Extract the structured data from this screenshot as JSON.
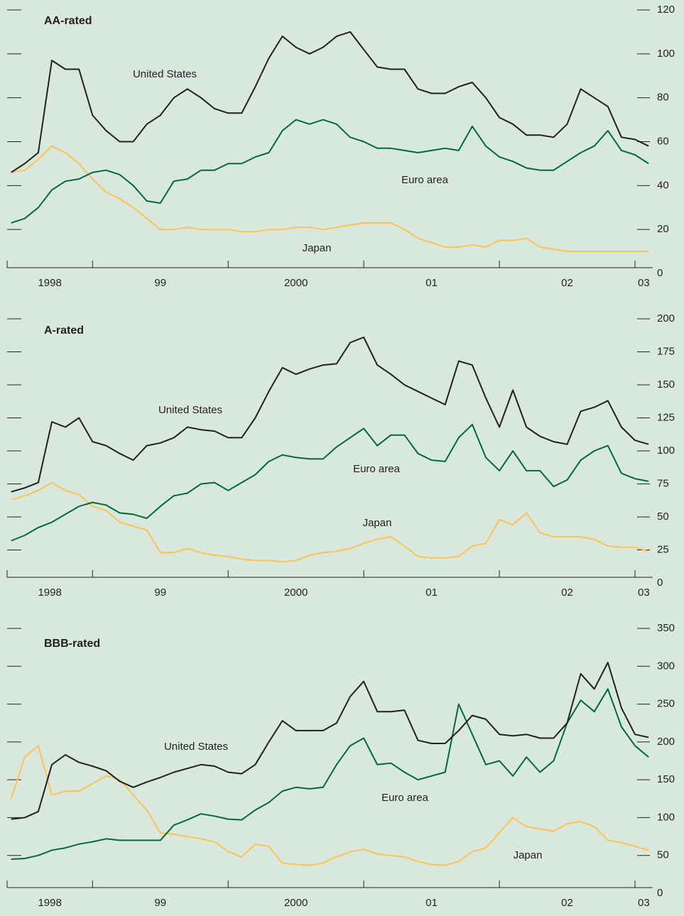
{
  "chart_data": [
    {
      "type": "line",
      "title": "AA-rated",
      "x": [
        1998.4,
        1998.5,
        1998.6,
        1998.7,
        1998.8,
        1998.9,
        1999,
        1999.1,
        1999.2,
        1999.3,
        1999.4,
        1999.5,
        1999.6,
        1999.7,
        1999.8,
        1999.9,
        2000,
        2000.1,
        2000.2,
        2000.3,
        2000.4,
        2000.5,
        2000.6,
        2000.7,
        2000.8,
        2000.9,
        2001,
        2001.1,
        2001.2,
        2001.3,
        2001.4,
        2001.5,
        2001.6,
        2001.7,
        2001.8,
        2001.9,
        2002,
        2002.1,
        2002.2,
        2002.3,
        2002.4,
        2002.5,
        2002.6,
        2002.7,
        2002.8,
        2002.9,
        2003,
        2003.1
      ],
      "series": [
        {
          "name": "United States",
          "color": "#231f20",
          "values": [
            46,
            50,
            55,
            97,
            93,
            93,
            72,
            65,
            60,
            60,
            68,
            72,
            80,
            84,
            80,
            75,
            73,
            73,
            85,
            98,
            108,
            103,
            100,
            103,
            108,
            110,
            102,
            94,
            93,
            93,
            84,
            82,
            82,
            85,
            87,
            80,
            71,
            68,
            63,
            63,
            62,
            68,
            84,
            80,
            76,
            62,
            61,
            58
          ]
        },
        {
          "name": "Euro area",
          "color": "#006a3c",
          "values": [
            23,
            25,
            30,
            38,
            42,
            43,
            46,
            47,
            45,
            40,
            33,
            32,
            42,
            43,
            47,
            47,
            50,
            50,
            53,
            55,
            65,
            70,
            68,
            70,
            68,
            62,
            60,
            57,
            57,
            56,
            55,
            56,
            57,
            56,
            67,
            58,
            53,
            51,
            48,
            47,
            47,
            51,
            55,
            58,
            65,
            56,
            54,
            50
          ]
        },
        {
          "name": "Japan",
          "color": "#fdc34e",
          "values": [
            46,
            47,
            52,
            58,
            55,
            50,
            43,
            37,
            34,
            30,
            25,
            20,
            20,
            21,
            20,
            20,
            20,
            19,
            19,
            20,
            20,
            21,
            21,
            20,
            21,
            22,
            23,
            23,
            23,
            20,
            16,
            14,
            12,
            12,
            13,
            12,
            15,
            15,
            16,
            12,
            11,
            10,
            10,
            10,
            10,
            10,
            10,
            10
          ]
        }
      ],
      "xlim": [
        1998.37,
        2003.13
      ],
      "xticks": [
        {
          "value": 1998.5,
          "label": "1998"
        },
        {
          "value": 1999.5,
          "label": "99"
        },
        {
          "value": 2000.5,
          "label": "2000"
        },
        {
          "value": 2001.5,
          "label": "01"
        },
        {
          "value": 2002.5,
          "label": "02"
        },
        {
          "value": 2003.5,
          "label": "03"
        }
      ],
      "ylim": [
        0,
        120
      ],
      "yticks": [
        0,
        20,
        40,
        60,
        80,
        100,
        120
      ]
    },
    {
      "type": "line",
      "title": "A-rated",
      "x": [
        1998.4,
        1998.5,
        1998.6,
        1998.7,
        1998.8,
        1998.9,
        1999,
        1999.1,
        1999.2,
        1999.3,
        1999.4,
        1999.5,
        1999.6,
        1999.7,
        1999.8,
        1999.9,
        2000,
        2000.1,
        2000.2,
        2000.3,
        2000.4,
        2000.5,
        2000.6,
        2000.7,
        2000.8,
        2000.9,
        2001,
        2001.1,
        2001.2,
        2001.3,
        2001.4,
        2001.5,
        2001.6,
        2001.7,
        2001.8,
        2001.9,
        2002,
        2002.1,
        2002.2,
        2002.3,
        2002.4,
        2002.5,
        2002.6,
        2002.7,
        2002.8,
        2002.9,
        2003,
        2003.1
      ],
      "series": [
        {
          "name": "United States",
          "color": "#231f20",
          "values": [
            69,
            72,
            76,
            122,
            118,
            125,
            107,
            104,
            98,
            93,
            104,
            106,
            110,
            118,
            116,
            115,
            110,
            110,
            125,
            145,
            163,
            158,
            162,
            165,
            166,
            182,
            186,
            165,
            158,
            150,
            145,
            140,
            135,
            168,
            165,
            140,
            118,
            146,
            118,
            111,
            107,
            105,
            130,
            133,
            138,
            118,
            108,
            105
          ]
        },
        {
          "name": "Euro area",
          "color": "#006a3c",
          "values": [
            32,
            36,
            42,
            46,
            52,
            58,
            61,
            59,
            53,
            52,
            49,
            58,
            66,
            68,
            75,
            76,
            70,
            76,
            82,
            92,
            97,
            95,
            94,
            94,
            103,
            110,
            117,
            104,
            112,
            112,
            98,
            93,
            92,
            110,
            120,
            95,
            85,
            100,
            85,
            85,
            73,
            78,
            93,
            100,
            104,
            83,
            79,
            77
          ]
        },
        {
          "name": "Japan",
          "color": "#fdc34e",
          "values": [
            63,
            66,
            70,
            76,
            70,
            67,
            58,
            55,
            46,
            43,
            40,
            23,
            23,
            26,
            23,
            21,
            20,
            18,
            17,
            17,
            16,
            17,
            21,
            23,
            24,
            26,
            30,
            33,
            35,
            28,
            20,
            19,
            19,
            20,
            28,
            30,
            48,
            44,
            53,
            38,
            35,
            35,
            35,
            33,
            28,
            27,
            27,
            24
          ]
        }
      ],
      "xlim": [
        1998.37,
        2003.13
      ],
      "xticks": [
        {
          "value": 1998.5,
          "label": "1998"
        },
        {
          "value": 1999.5,
          "label": "99"
        },
        {
          "value": 2000.5,
          "label": "2000"
        },
        {
          "value": 2001.5,
          "label": "01"
        },
        {
          "value": 2002.5,
          "label": "02"
        },
        {
          "value": 2003.5,
          "label": "03"
        }
      ],
      "ylim": [
        0,
        200
      ],
      "yticks": [
        0,
        25,
        50,
        75,
        100,
        125,
        150,
        175,
        200
      ]
    },
    {
      "type": "line",
      "title": "BBB-rated",
      "x": [
        1998.4,
        1998.5,
        1998.6,
        1998.7,
        1998.8,
        1998.9,
        1999,
        1999.1,
        1999.2,
        1999.3,
        1999.4,
        1999.5,
        1999.6,
        1999.7,
        1999.8,
        1999.9,
        2000,
        2000.1,
        2000.2,
        2000.3,
        2000.4,
        2000.5,
        2000.6,
        2000.7,
        2000.8,
        2000.9,
        2001,
        2001.1,
        2001.2,
        2001.3,
        2001.4,
        2001.5,
        2001.6,
        2001.7,
        2001.8,
        2001.9,
        2002,
        2002.1,
        2002.2,
        2002.3,
        2002.4,
        2002.5,
        2002.6,
        2002.7,
        2002.8,
        2002.9,
        2003,
        2003.1
      ],
      "series": [
        {
          "name": "United States",
          "color": "#231f20",
          "values": [
            98,
            100,
            108,
            170,
            183,
            173,
            168,
            162,
            148,
            140,
            147,
            153,
            160,
            165,
            170,
            168,
            160,
            158,
            170,
            200,
            228,
            215,
            215,
            215,
            225,
            260,
            280,
            240,
            240,
            242,
            202,
            198,
            198,
            215,
            235,
            230,
            210,
            208,
            210,
            205,
            205,
            225,
            290,
            270,
            305,
            245,
            210,
            206
          ]
        },
        {
          "name": "Euro area",
          "color": "#006a3c",
          "values": [
            45,
            46,
            50,
            57,
            60,
            65,
            68,
            72,
            70,
            70,
            70,
            70,
            90,
            97,
            105,
            102,
            98,
            97,
            110,
            120,
            135,
            140,
            138,
            140,
            170,
            195,
            205,
            170,
            172,
            160,
            150,
            155,
            160,
            250,
            210,
            170,
            175,
            155,
            180,
            160,
            175,
            225,
            255,
            240,
            270,
            220,
            195,
            180
          ]
        },
        {
          "name": "Japan",
          "color": "#fdc34e",
          "values": [
            125,
            180,
            195,
            130,
            135,
            135,
            145,
            155,
            150,
            130,
            110,
            80,
            78,
            75,
            72,
            68,
            55,
            48,
            65,
            62,
            40,
            38,
            37,
            40,
            48,
            55,
            58,
            52,
            50,
            48,
            42,
            38,
            37,
            42,
            55,
            60,
            80,
            100,
            88,
            85,
            82,
            92,
            95,
            88,
            70,
            67,
            62,
            57
          ]
        }
      ],
      "xlim": [
        1998.37,
        2003.13
      ],
      "xticks": [
        {
          "value": 1998.5,
          "label": "1998"
        },
        {
          "value": 1999.5,
          "label": "99"
        },
        {
          "value": 2000.5,
          "label": "2000"
        },
        {
          "value": 2001.5,
          "label": "01"
        },
        {
          "value": 2002.5,
          "label": "02"
        },
        {
          "value": 2003.5,
          "label": "03"
        }
      ],
      "ylim": [
        0,
        350
      ],
      "yticks": [
        0,
        50,
        100,
        150,
        200,
        250,
        300,
        350
      ]
    }
  ]
}
